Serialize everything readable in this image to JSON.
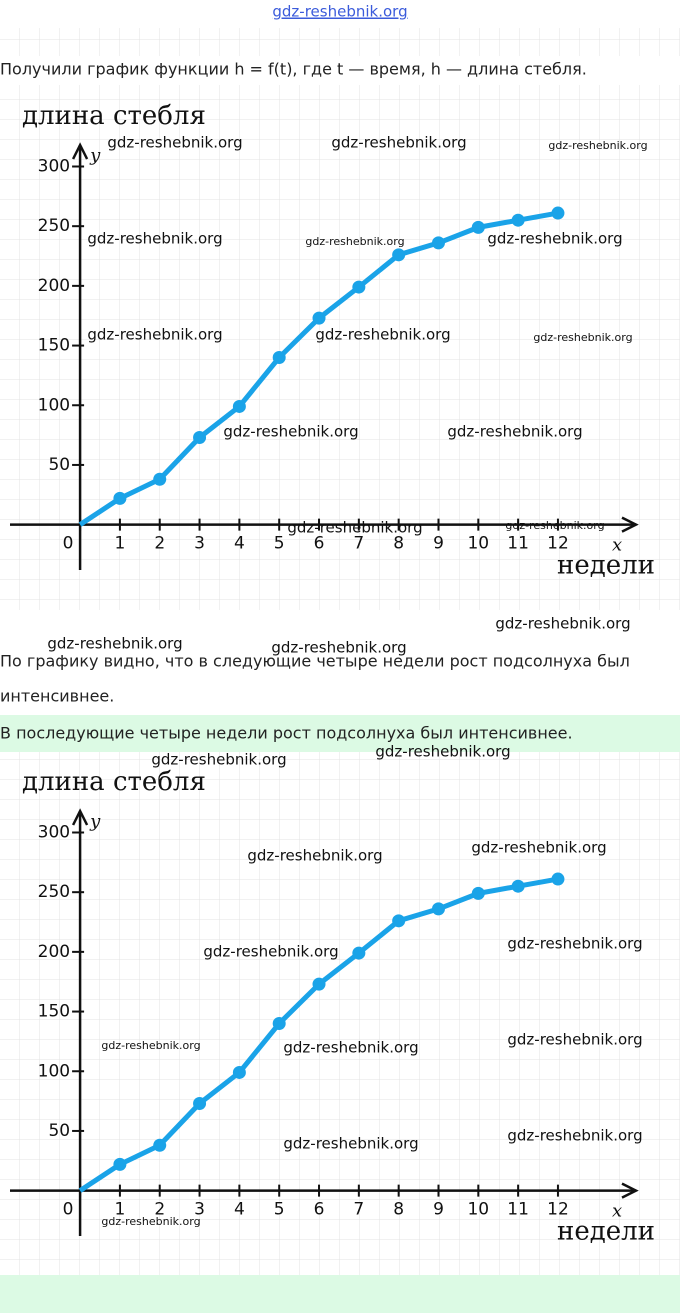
{
  "header": {
    "site": "gdz-reshebnik.org"
  },
  "text1": "Получили график функции h = f(t), где t — время, h — длина стебля.",
  "text2": "По графику видно, что в следующие четыре недели рост подсолнуха был",
  "text3": "интенсивнее.",
  "answer": "В последующие четыре недели рост подсолнуха был интенсивнее.",
  "watermark": "gdz-reshebnik.org",
  "chart_data": [
    {
      "type": "line",
      "y_title": "длина стебля",
      "y_label": "y",
      "x_label": "x",
      "x_title": "недели",
      "x": [
        0,
        1,
        2,
        3,
        4,
        5,
        6,
        7,
        8,
        9,
        10,
        11,
        12
      ],
      "values": [
        0,
        22,
        38,
        73,
        99,
        140,
        173,
        199,
        226,
        236,
        249,
        255,
        261
      ],
      "color": "#1aa3e8",
      "xlim": [
        -1.76,
        13.96
      ],
      "ylim": [
        -38,
        318
      ],
      "xticks": [
        0,
        1,
        2,
        3,
        4,
        5,
        6,
        7,
        8,
        9,
        10,
        11,
        12
      ],
      "yticks": [
        50,
        100,
        150,
        200,
        250,
        300
      ]
    },
    {
      "type": "line",
      "y_title": "длина стебля",
      "y_label": "y",
      "x_label": "x",
      "x_title": "недели",
      "x": [
        0,
        1,
        2,
        3,
        4,
        5,
        6,
        7,
        8,
        9,
        10,
        11,
        12
      ],
      "values": [
        0,
        22,
        38,
        73,
        99,
        140,
        173,
        199,
        226,
        236,
        249,
        255,
        261
      ],
      "color": "#1aa3e8",
      "xlim": [
        -1.76,
        13.96
      ],
      "ylim": [
        -38,
        318
      ],
      "xticks": [
        0,
        1,
        2,
        3,
        4,
        5,
        6,
        7,
        8,
        9,
        10,
        11,
        12
      ],
      "yticks": [
        50,
        100,
        150,
        200,
        250,
        300
      ]
    }
  ]
}
